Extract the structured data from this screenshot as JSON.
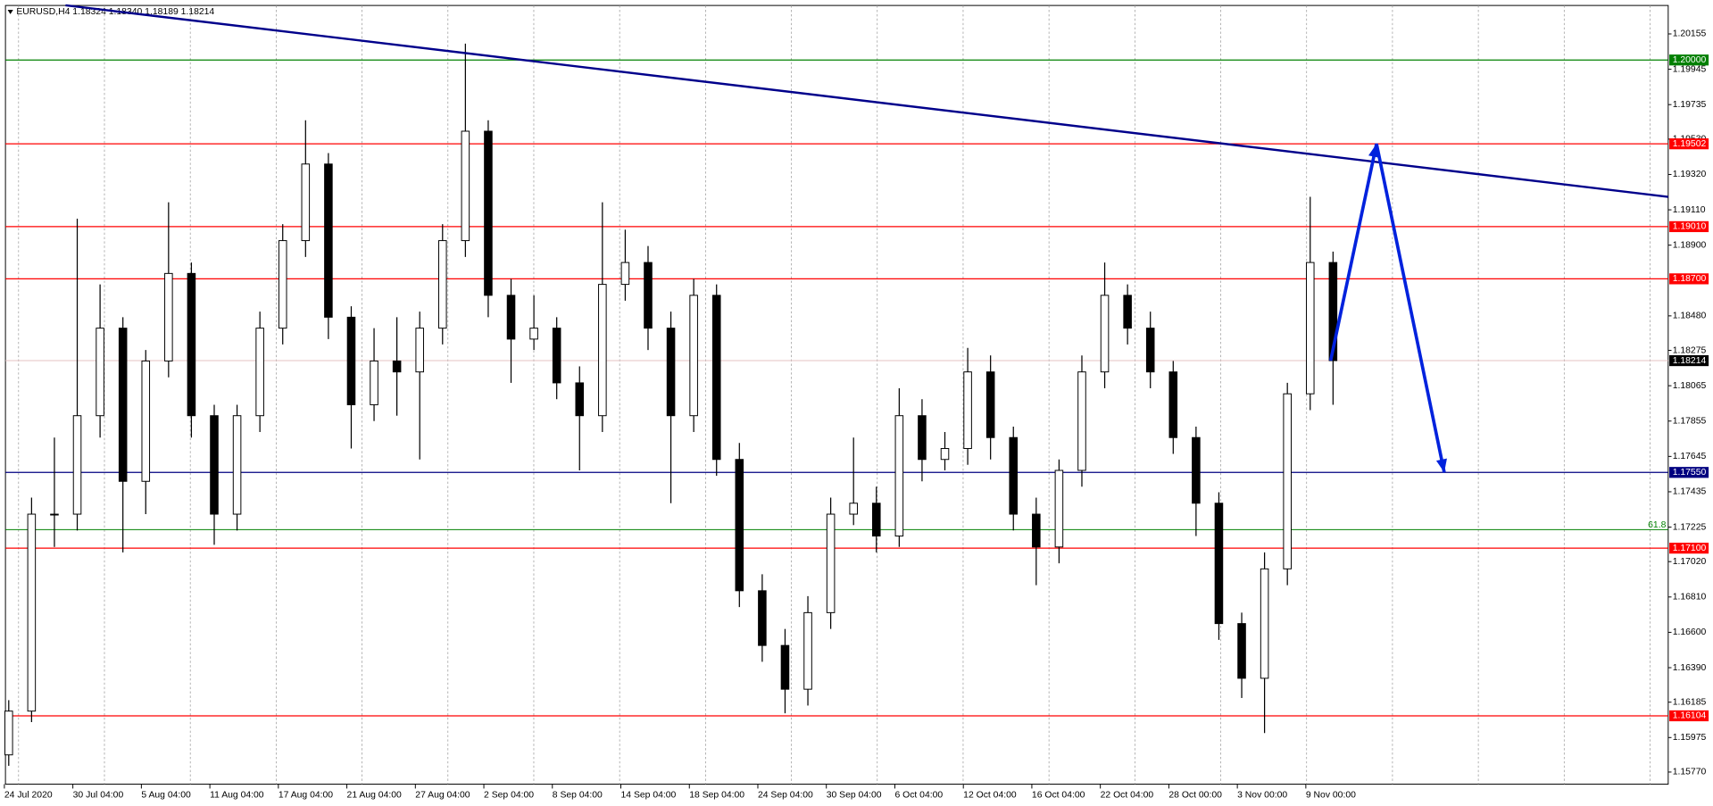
{
  "chart_data": {
    "type": "candlestick",
    "header": "EURUSD,H4  1.18324 1.18340 1.18189 1.18214",
    "categories": [
      "24 Jul 2020",
      null,
      null,
      "30 Jul 04:00",
      null,
      null,
      "5 Aug 04:00",
      null,
      null,
      "11 Aug 04:00",
      null,
      null,
      "17 Aug 04:00",
      null,
      null,
      "21 Aug 04:00",
      null,
      null,
      "27 Aug 04:00",
      null,
      null,
      "2 Sep 04:00",
      null,
      null,
      "8 Sep 04:00",
      null,
      null,
      "14 Sep 04:00",
      null,
      null,
      "18 Sep 04:00",
      null,
      null,
      "24 Sep 04:00",
      null,
      null,
      "30 Sep 04:00",
      null,
      null,
      "6 Oct 04:00",
      null,
      null,
      "12 Oct 04:00",
      null,
      null,
      "16 Oct 04:00",
      null,
      null,
      "22 Oct 04:00",
      null,
      null,
      "28 Oct 00:00",
      null,
      null,
      "3 Nov 00:00",
      null,
      null,
      "9 Nov 00:00",
      null
    ],
    "candles": [
      [
        1.15872,
        1.16197,
        1.15807,
        1.16132
      ],
      [
        1.16132,
        1.174,
        1.16067,
        1.17302
      ],
      [
        1.17302,
        1.17757,
        1.17107,
        1.17302
      ],
      [
        1.17302,
        1.19057,
        1.17205,
        1.17887
      ],
      [
        1.17887,
        1.18667,
        1.17757,
        1.18407
      ],
      [
        1.18407,
        1.18472,
        1.17075,
        1.17497
      ],
      [
        1.17497,
        1.18277,
        1.17302,
        1.18212
      ],
      [
        1.18212,
        1.19155,
        1.18115,
        1.18732
      ],
      [
        1.18732,
        1.18797,
        1.17757,
        1.17887
      ],
      [
        1.17887,
        1.17952,
        1.1712,
        1.17302
      ],
      [
        1.17302,
        1.17952,
        1.17205,
        1.17887
      ],
      [
        1.17887,
        1.18505,
        1.1779,
        1.18407
      ],
      [
        1.18407,
        1.19025,
        1.1831,
        1.18927
      ],
      [
        1.18927,
        1.19642,
        1.1883,
        1.19382
      ],
      [
        1.19382,
        1.19447,
        1.18342,
        1.18472
      ],
      [
        1.18472,
        1.18537,
        1.17692,
        1.17952
      ],
      [
        1.17952,
        1.18407,
        1.17855,
        1.18212
      ],
      [
        1.18212,
        1.18472,
        1.17887,
        1.18147
      ],
      [
        1.18147,
        1.18505,
        1.17627,
        1.18407
      ],
      [
        1.18407,
        1.19025,
        1.1831,
        1.18927
      ],
      [
        1.18927,
        1.20097,
        1.1883,
        1.19577
      ],
      [
        1.19577,
        1.19642,
        1.18472,
        1.18602
      ],
      [
        1.18602,
        1.187,
        1.18082,
        1.18342
      ],
      [
        1.18342,
        1.18602,
        1.18277,
        1.18407
      ],
      [
        1.18407,
        1.18472,
        1.17985,
        1.18082
      ],
      [
        1.18082,
        1.1818,
        1.17562,
        1.17887
      ],
      [
        1.17887,
        1.19155,
        1.1779,
        1.18667
      ],
      [
        1.18667,
        1.18992,
        1.1857,
        1.18797
      ],
      [
        1.18797,
        1.18895,
        1.18277,
        1.18407
      ],
      [
        1.18407,
        1.18505,
        1.17367,
        1.17887
      ],
      [
        1.17887,
        1.187,
        1.1779,
        1.18602
      ],
      [
        1.18602,
        1.18667,
        1.1753,
        1.17627
      ],
      [
        1.17627,
        1.17725,
        1.1675,
        1.16847
      ],
      [
        1.16847,
        1.16945,
        1.16425,
        1.16522
      ],
      [
        1.16522,
        1.1662,
        1.16119,
        1.16262
      ],
      [
        1.16262,
        1.16815,
        1.16165,
        1.16717
      ],
      [
        1.16717,
        1.174,
        1.1662,
        1.17302
      ],
      [
        1.17302,
        1.17757,
        1.17237,
        1.17367
      ],
      [
        1.17367,
        1.17465,
        1.17075,
        1.17172
      ],
      [
        1.17172,
        1.1805,
        1.17107,
        1.17887
      ],
      [
        1.17887,
        1.17985,
        1.17497,
        1.17627
      ],
      [
        1.17627,
        1.1779,
        1.17562,
        1.17692
      ],
      [
        1.17692,
        1.1829,
        1.17595,
        1.18147
      ],
      [
        1.18147,
        1.18245,
        1.17627,
        1.17757
      ],
      [
        1.17757,
        1.17822,
        1.17205,
        1.17302
      ],
      [
        1.17302,
        1.174,
        1.1688,
        1.17107
      ],
      [
        1.17107,
        1.17627,
        1.1701,
        1.17562
      ],
      [
        1.17562,
        1.18245,
        1.17465,
        1.18147
      ],
      [
        1.18147,
        1.18797,
        1.1805,
        1.18602
      ],
      [
        1.18602,
        1.18667,
        1.1831,
        1.18407
      ],
      [
        1.18407,
        1.18505,
        1.1805,
        1.18147
      ],
      [
        1.18147,
        1.18212,
        1.1766,
        1.17757
      ],
      [
        1.17757,
        1.17822,
        1.17172,
        1.17367
      ],
      [
        1.17367,
        1.17432,
        1.16555,
        1.16652
      ],
      [
        1.16652,
        1.16717,
        1.1621,
        1.16327
      ],
      [
        1.16327,
        1.17075,
        1.16002,
        1.16977
      ],
      [
        1.16977,
        1.18082,
        1.1688,
        1.18017
      ],
      [
        1.18017,
        1.19187,
        1.1792,
        1.18797
      ],
      [
        1.18797,
        1.18862,
        1.17952,
        1.18214
      ]
    ],
    "ylim": [
      1.15698,
      1.20324
    ],
    "yticks": [
      1.20155,
      1.19945,
      1.19735,
      {
        "value": 1.1953,
        "label": "1.19530"
      },
      {
        "value": 1.1932,
        "label": "1.19320"
      },
      {
        "value": 1.1911,
        "label": "1.19110"
      },
      {
        "value": 1.189,
        "label": "1.18900"
      },
      {
        "value": 1.1848,
        "label": "1.18480"
      },
      1.18275,
      1.18065,
      1.17855,
      1.17645,
      1.17435,
      1.17225,
      {
        "value": 1.1702,
        "label": "1.17020"
      },
      {
        "value": 1.1681,
        "label": "1.16810"
      },
      {
        "value": 1.166,
        "label": "1.16600"
      },
      {
        "value": 1.1639,
        "label": "1.16390"
      },
      1.16185,
      1.15975,
      {
        "value": 1.1577,
        "label": "1.15770"
      }
    ],
    "levels": [
      {
        "value": 1.2,
        "label": "1.20000",
        "color": "#008000"
      },
      {
        "value": 1.19502,
        "label": "1.19502",
        "color": "#ff0000"
      },
      {
        "value": 1.1901,
        "label": "1.19010",
        "color": "#ff0000"
      },
      {
        "value": 1.187,
        "label": "1.18700",
        "color": "#ff0000"
      },
      {
        "value": 1.18214,
        "label": "1.18214",
        "color": "#000000"
      },
      {
        "value": 1.1755,
        "label": "1.17550",
        "color": "#000080"
      },
      {
        "value": 1.171,
        "label": "1.17100",
        "color": "#ff0000"
      },
      {
        "value": 1.16104,
        "label": "1.16104",
        "color": "#ff0000"
      }
    ],
    "fib_level": {
      "value": 1.1721,
      "label": "61.8",
      "color": "#008000"
    },
    "trendline": [
      1.20325,
      1.19187
    ],
    "projection": [
      1.18214,
      1.19502,
      1.1755
    ],
    "colors": {
      "trendline": "#00008b",
      "projection": "#0022dd",
      "current_line": "#e6c3c3"
    }
  }
}
